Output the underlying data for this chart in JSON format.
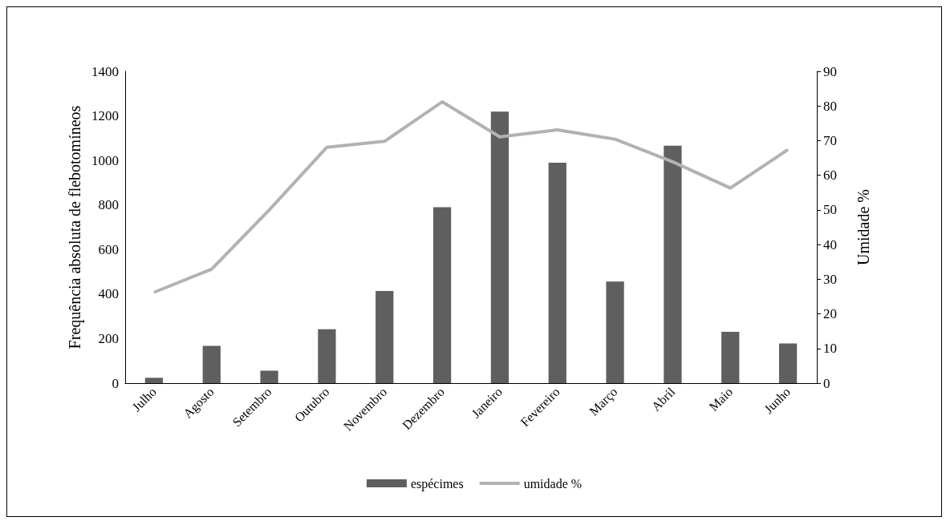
{
  "chart_data": {
    "type": "bar",
    "ylabel": "Frequência absoluta de flebotomíneos",
    "y2label": "Umidade %",
    "categories": [
      "Julho",
      "Agosto",
      "Setembro",
      "Outubro",
      "Novembro",
      "Dezembro",
      "Janeiro",
      "Fevereiro",
      "Março",
      "Abril",
      "Maio",
      "Junho"
    ],
    "series": [
      {
        "name": "espécimes",
        "color": "#5f5f5f",
        "values": [
          24,
          167,
          56,
          242,
          414,
          790,
          1219,
          990,
          456,
          1066,
          230,
          178
        ]
      },
      {
        "name": "umidade %",
        "type": "line",
        "axis": "y2",
        "color": "#b2b2b2",
        "values": [
          26.2,
          32.9,
          50,
          68.1,
          69.8,
          81.2,
          71.1,
          73.1,
          70.4,
          63.9,
          56.3,
          67.4
        ]
      }
    ],
    "ylim": [
      0,
      1400
    ],
    "yticks": [
      0,
      200,
      400,
      600,
      800,
      1000,
      1200,
      1400
    ],
    "y2lim": [
      0,
      90
    ],
    "y2ticks": [
      0,
      10,
      20,
      30,
      40,
      50,
      60,
      70,
      80,
      90
    ],
    "grid": false,
    "legend": "bottom",
    "marker": "none"
  }
}
